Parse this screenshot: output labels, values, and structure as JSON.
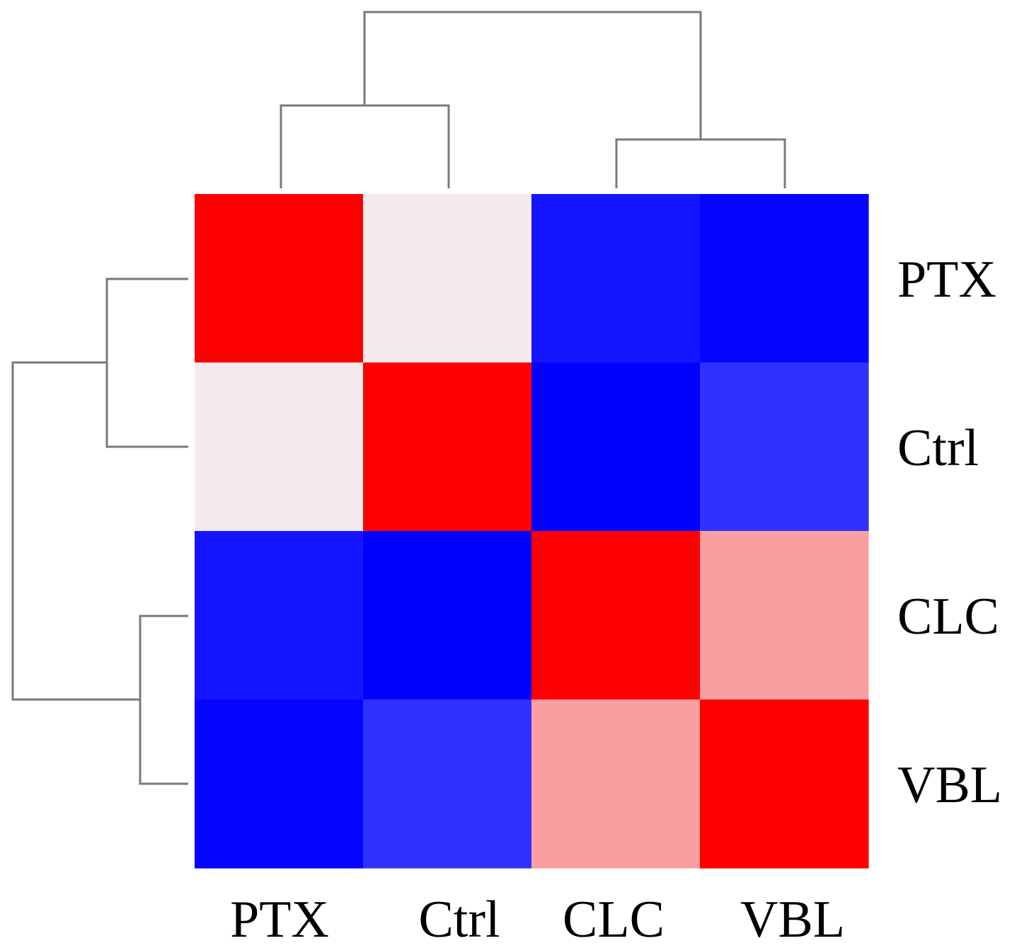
{
  "chart_data": {
    "type": "heatmap",
    "title": "",
    "xlabel": "",
    "ylabel": "",
    "x_categories": [
      "PTX",
      "Ctrl",
      "CLC",
      "VBL"
    ],
    "y_categories": [
      "PTX",
      "Ctrl",
      "CLC",
      "VBL"
    ],
    "values": [
      [
        1.0,
        0.05,
        -0.92,
        -0.98
      ],
      [
        0.05,
        1.0,
        -1.0,
        -0.8
      ],
      [
        -0.92,
        -1.0,
        1.0,
        0.35
      ],
      [
        -0.98,
        -0.8,
        0.35,
        1.0
      ]
    ],
    "value_range": [
      -1,
      1
    ],
    "colors": {
      "low": "#0000ff",
      "mid": "#f5f5fa",
      "high": "#ff0000"
    },
    "column_dendrogram": {
      "position": "top",
      "clusters": [
        [
          "PTX",
          "Ctrl"
        ],
        [
          "CLC",
          "VBL"
        ]
      ]
    },
    "row_dendrogram": {
      "position": "left",
      "clusters": [
        [
          "PTX",
          "Ctrl"
        ],
        [
          "CLC",
          "VBL"
        ]
      ]
    },
    "legend": "none"
  }
}
